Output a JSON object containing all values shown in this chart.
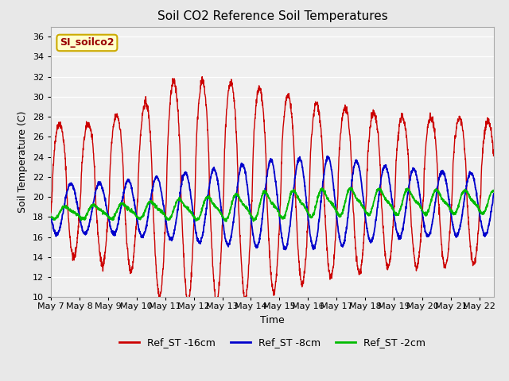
{
  "title": "Soil CO2 Reference Soil Temperatures",
  "xlabel": "Time",
  "ylabel": "Soil Temperature (C)",
  "ylim": [
    10,
    37
  ],
  "yticks": [
    10,
    12,
    14,
    16,
    18,
    20,
    22,
    24,
    26,
    28,
    30,
    32,
    34,
    36
  ],
  "xtick_labels": [
    "May 7",
    "May 8",
    "May 9",
    "May 10",
    "May 11",
    "May 12",
    "May 13",
    "May 14",
    "May 15",
    "May 16",
    "May 17",
    "May 18",
    "May 19",
    "May 20",
    "May 21",
    "May 22"
  ],
  "color_16cm": "#cc0000",
  "color_8cm": "#0000cc",
  "color_2cm": "#00bb00",
  "legend_labels": [
    "Ref_ST -16cm",
    "Ref_ST -8cm",
    "Ref_ST -2cm"
  ],
  "annotation_text": "SI_soilco2",
  "annotation_bg": "#ffffcc",
  "annotation_border": "#ccaa00",
  "background_color": "#e8e8e8",
  "plot_bg": "#f0f0f0",
  "grid_color": "#ffffff",
  "n_days": 15.5,
  "points_per_day": 144
}
